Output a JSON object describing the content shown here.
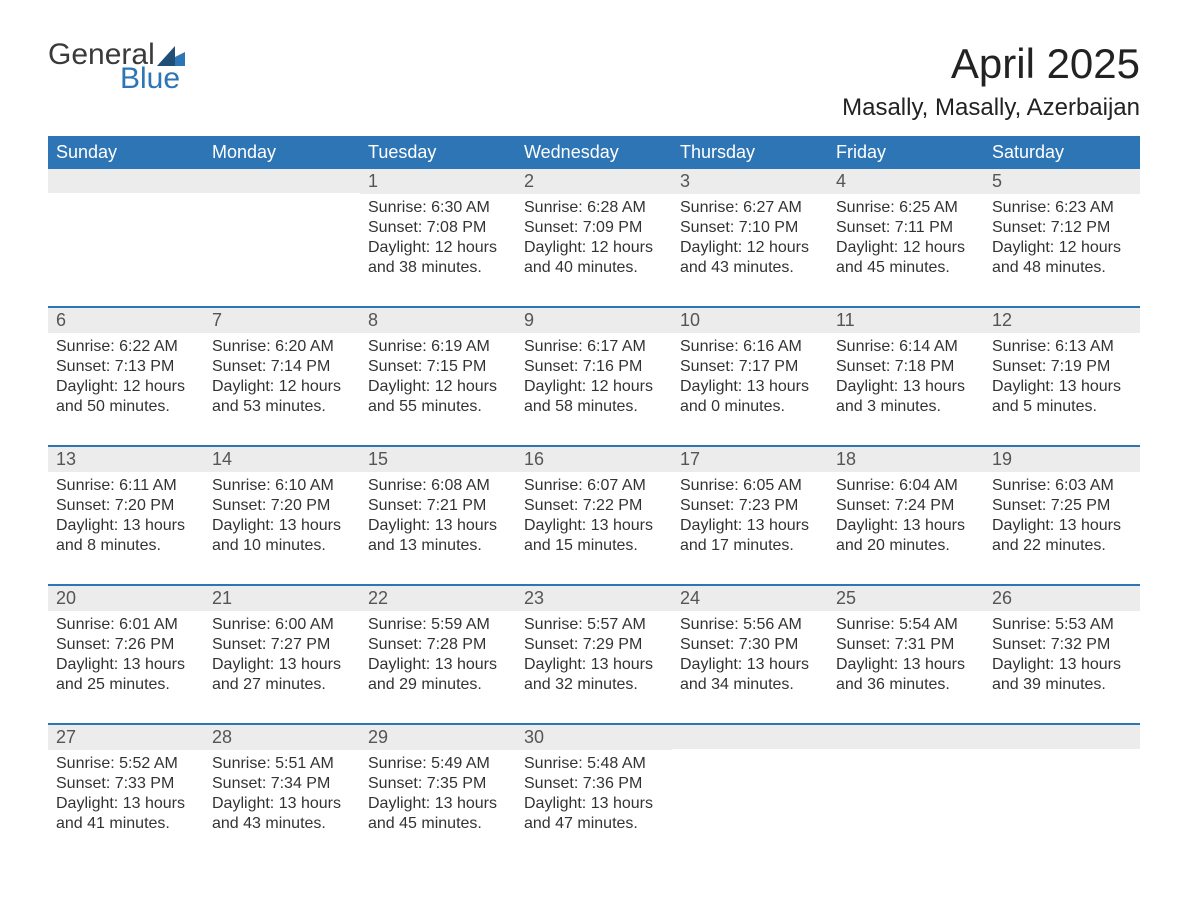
{
  "brand": {
    "word1": "General",
    "word2": "Blue"
  },
  "colors": {
    "header_bg": "#2e75b6",
    "header_text": "#ffffff",
    "daynum_bg": "#ececec",
    "text": "#333333",
    "accent": "#2e75b6"
  },
  "title": "April 2025",
  "location": "Masally, Masally, Azerbaijan",
  "days_of_week": [
    "Sunday",
    "Monday",
    "Tuesday",
    "Wednesday",
    "Thursday",
    "Friday",
    "Saturday"
  ],
  "labels": {
    "sunrise": "Sunrise:",
    "sunset": "Sunset:",
    "daylight": "Daylight:"
  },
  "weeks": [
    [
      null,
      null,
      {
        "n": "1",
        "sunrise": "6:30 AM",
        "sunset": "7:08 PM",
        "daylight": "12 hours and 38 minutes."
      },
      {
        "n": "2",
        "sunrise": "6:28 AM",
        "sunset": "7:09 PM",
        "daylight": "12 hours and 40 minutes."
      },
      {
        "n": "3",
        "sunrise": "6:27 AM",
        "sunset": "7:10 PM",
        "daylight": "12 hours and 43 minutes."
      },
      {
        "n": "4",
        "sunrise": "6:25 AM",
        "sunset": "7:11 PM",
        "daylight": "12 hours and 45 minutes."
      },
      {
        "n": "5",
        "sunrise": "6:23 AM",
        "sunset": "7:12 PM",
        "daylight": "12 hours and 48 minutes."
      }
    ],
    [
      {
        "n": "6",
        "sunrise": "6:22 AM",
        "sunset": "7:13 PM",
        "daylight": "12 hours and 50 minutes."
      },
      {
        "n": "7",
        "sunrise": "6:20 AM",
        "sunset": "7:14 PM",
        "daylight": "12 hours and 53 minutes."
      },
      {
        "n": "8",
        "sunrise": "6:19 AM",
        "sunset": "7:15 PM",
        "daylight": "12 hours and 55 minutes."
      },
      {
        "n": "9",
        "sunrise": "6:17 AM",
        "sunset": "7:16 PM",
        "daylight": "12 hours and 58 minutes."
      },
      {
        "n": "10",
        "sunrise": "6:16 AM",
        "sunset": "7:17 PM",
        "daylight": "13 hours and 0 minutes."
      },
      {
        "n": "11",
        "sunrise": "6:14 AM",
        "sunset": "7:18 PM",
        "daylight": "13 hours and 3 minutes."
      },
      {
        "n": "12",
        "sunrise": "6:13 AM",
        "sunset": "7:19 PM",
        "daylight": "13 hours and 5 minutes."
      }
    ],
    [
      {
        "n": "13",
        "sunrise": "6:11 AM",
        "sunset": "7:20 PM",
        "daylight": "13 hours and 8 minutes."
      },
      {
        "n": "14",
        "sunrise": "6:10 AM",
        "sunset": "7:20 PM",
        "daylight": "13 hours and 10 minutes."
      },
      {
        "n": "15",
        "sunrise": "6:08 AM",
        "sunset": "7:21 PM",
        "daylight": "13 hours and 13 minutes."
      },
      {
        "n": "16",
        "sunrise": "6:07 AM",
        "sunset": "7:22 PM",
        "daylight": "13 hours and 15 minutes."
      },
      {
        "n": "17",
        "sunrise": "6:05 AM",
        "sunset": "7:23 PM",
        "daylight": "13 hours and 17 minutes."
      },
      {
        "n": "18",
        "sunrise": "6:04 AM",
        "sunset": "7:24 PM",
        "daylight": "13 hours and 20 minutes."
      },
      {
        "n": "19",
        "sunrise": "6:03 AM",
        "sunset": "7:25 PM",
        "daylight": "13 hours and 22 minutes."
      }
    ],
    [
      {
        "n": "20",
        "sunrise": "6:01 AM",
        "sunset": "7:26 PM",
        "daylight": "13 hours and 25 minutes."
      },
      {
        "n": "21",
        "sunrise": "6:00 AM",
        "sunset": "7:27 PM",
        "daylight": "13 hours and 27 minutes."
      },
      {
        "n": "22",
        "sunrise": "5:59 AM",
        "sunset": "7:28 PM",
        "daylight": "13 hours and 29 minutes."
      },
      {
        "n": "23",
        "sunrise": "5:57 AM",
        "sunset": "7:29 PM",
        "daylight": "13 hours and 32 minutes."
      },
      {
        "n": "24",
        "sunrise": "5:56 AM",
        "sunset": "7:30 PM",
        "daylight": "13 hours and 34 minutes."
      },
      {
        "n": "25",
        "sunrise": "5:54 AM",
        "sunset": "7:31 PM",
        "daylight": "13 hours and 36 minutes."
      },
      {
        "n": "26",
        "sunrise": "5:53 AM",
        "sunset": "7:32 PM",
        "daylight": "13 hours and 39 minutes."
      }
    ],
    [
      {
        "n": "27",
        "sunrise": "5:52 AM",
        "sunset": "7:33 PM",
        "daylight": "13 hours and 41 minutes."
      },
      {
        "n": "28",
        "sunrise": "5:51 AM",
        "sunset": "7:34 PM",
        "daylight": "13 hours and 43 minutes."
      },
      {
        "n": "29",
        "sunrise": "5:49 AM",
        "sunset": "7:35 PM",
        "daylight": "13 hours and 45 minutes."
      },
      {
        "n": "30",
        "sunrise": "5:48 AM",
        "sunset": "7:36 PM",
        "daylight": "13 hours and 47 minutes."
      },
      null,
      null,
      null
    ]
  ]
}
